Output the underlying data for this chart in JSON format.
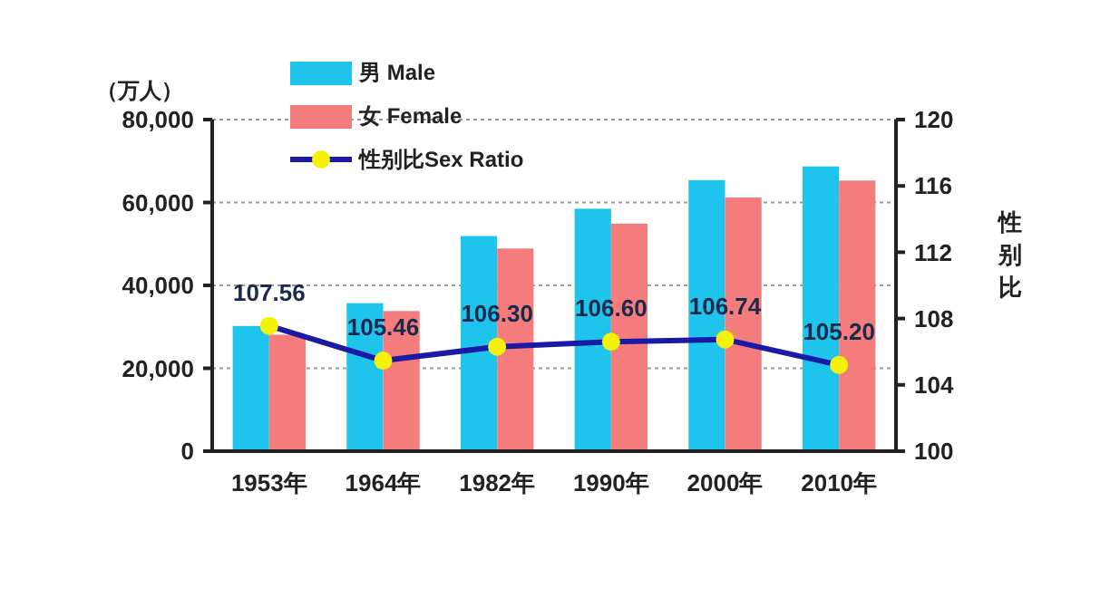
{
  "chart_data": {
    "type": "bar",
    "ylabel": "（万人）",
    "y2label": "性别比",
    "categories": [
      "1953年",
      "1964年",
      "1982年",
      "1990年",
      "2000年",
      "2010年"
    ],
    "series": [
      {
        "name": "男 Male",
        "color": "#1fc4ec",
        "values": [
          30200,
          35700,
          51900,
          58500,
          65400,
          68700
        ]
      },
      {
        "name": "女 Female",
        "color": "#f47c7c",
        "values": [
          28100,
          33800,
          48900,
          54900,
          61200,
          65300
        ]
      },
      {
        "name": "性别比Sex Ratio",
        "type": "line",
        "axis": "y2",
        "color": "#1a1aa6",
        "marker": "circle",
        "values": [
          107.56,
          105.46,
          106.3,
          106.6,
          106.74,
          105.2
        ],
        "value_labels": [
          "107.56",
          "105.46",
          "106.30",
          "106.60",
          "106.74",
          "105.20"
        ]
      }
    ],
    "ylim": [
      0,
      80000
    ],
    "yticks": [
      {
        "value": 0,
        "label": "0"
      },
      {
        "value": 20000,
        "label": "20,000"
      },
      {
        "value": 40000,
        "label": "40,000"
      },
      {
        "value": 60000,
        "label": "60,000"
      },
      {
        "value": 80000,
        "label": "80,000"
      }
    ],
    "y2lim": [
      100,
      120
    ],
    "y2ticks": [
      100,
      104,
      108,
      112,
      116,
      120
    ],
    "grid": "y",
    "legend": "top left"
  }
}
